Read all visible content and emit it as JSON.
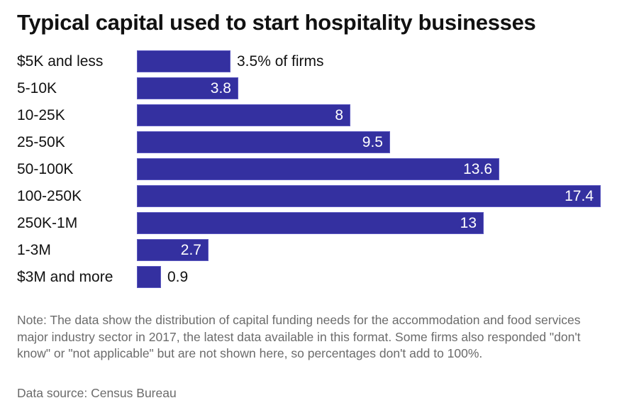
{
  "chart_data": {
    "type": "bar",
    "orientation": "horizontal",
    "title": "Typical capital used to start hospitality businesses",
    "xlabel": "",
    "ylabel": "",
    "unit": "% of firms",
    "categories": [
      "$5K and less",
      "5-10K",
      "10-25K",
      "25-50K",
      "50-100K",
      "100-250K",
      "250K-1M",
      "1-3M",
      "$3M and more"
    ],
    "values": [
      3.5,
      3.8,
      8,
      9.5,
      13.6,
      17.4,
      13,
      2.7,
      0.9
    ],
    "value_labels": [
      "3.5% of firms",
      "3.8",
      "8",
      "9.5",
      "13.6",
      "17.4",
      "13",
      "2.7",
      "0.9"
    ],
    "label_position": [
      "outside",
      "inside",
      "inside",
      "inside",
      "inside",
      "inside",
      "inside",
      "inside",
      "outside"
    ],
    "bar_color": "#3430a0",
    "grid": false,
    "legend": null,
    "xlim": [
      0,
      17.4
    ]
  },
  "title": "Typical capital used to start hospitality businesses",
  "rows": [
    {
      "label": "$5K and less",
      "value_label": "3.5% of firms"
    },
    {
      "label": "5-10K",
      "value_label": "3.8"
    },
    {
      "label": "10-25K",
      "value_label": "8"
    },
    {
      "label": "25-50K",
      "value_label": "9.5"
    },
    {
      "label": "50-100K",
      "value_label": "13.6"
    },
    {
      "label": "100-250K",
      "value_label": "17.4"
    },
    {
      "label": "250K-1M",
      "value_label": "13"
    },
    {
      "label": "1-3M",
      "value_label": "2.7"
    },
    {
      "label": "$3M and more",
      "value_label": "0.9"
    }
  ],
  "footer": {
    "note": "Note: The data show the distribution of capital funding needs for the accommodation and food services major industry sector in 2017, the latest data available in this format. Some firms also responded \"don't know\" or \"not applicable\" but are not shown here, so percentages don't add to 100%.",
    "source": "Data source: Census Bureau"
  }
}
